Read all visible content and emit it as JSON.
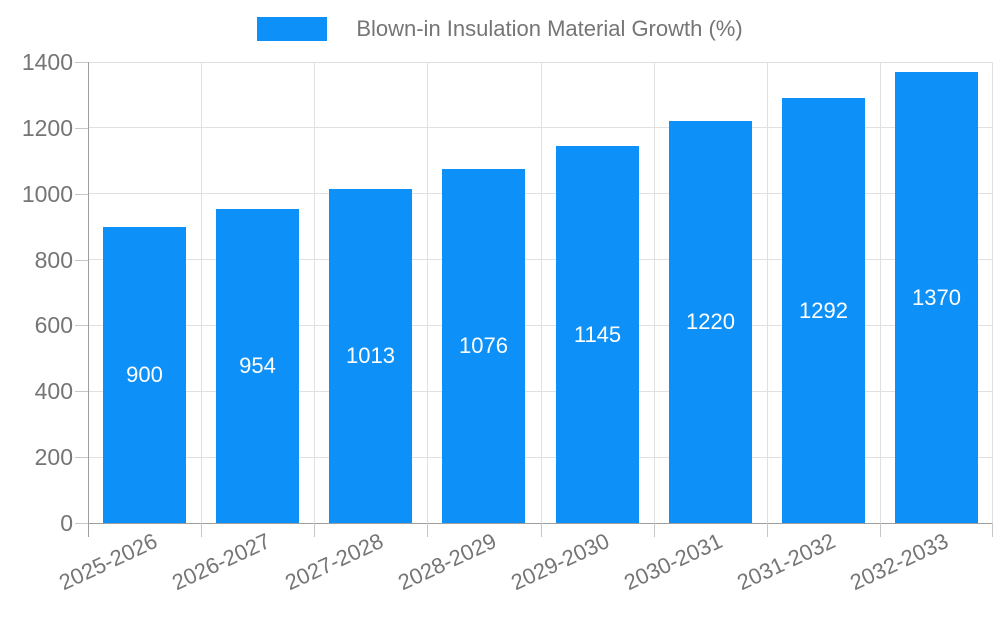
{
  "chart_data": {
    "type": "bar",
    "title": "Blown-in Insulation Material Growth (%)",
    "categories": [
      "2025-2026",
      "2026-2027",
      "2027-2028",
      "2028-2029",
      "2029-2030",
      "2030-2031",
      "2031-2032",
      "2032-2033"
    ],
    "values": [
      900,
      954,
      1013,
      1076,
      1145,
      1220,
      1292,
      1370
    ],
    "xlabel": "",
    "ylabel": "",
    "ylim": [
      0,
      1400
    ],
    "yticks": [
      0,
      200,
      400,
      600,
      800,
      1000,
      1200,
      1400
    ],
    "grid": true,
    "legend_position": "top-center",
    "bar_labels_inside": true,
    "colors": {
      "bar": "#0d90f8",
      "bar_label": "#ffffff",
      "axis_text": "#757575",
      "gridline": "#e0e0e0",
      "axis_line": "#9e9e9e",
      "tick_mark": "#c6c6c6",
      "background": "#ffffff"
    }
  }
}
